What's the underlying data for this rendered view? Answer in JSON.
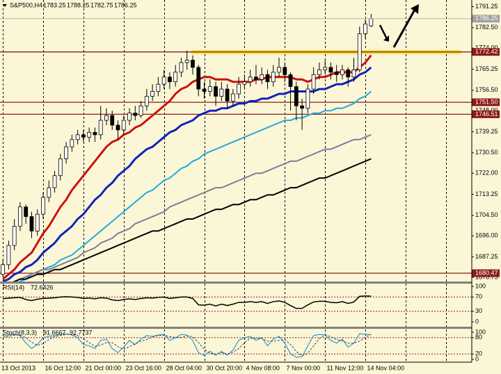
{
  "chart_data": {
    "type": "candlestick",
    "symbol": "S&P500,H4",
    "categories": [
      "13 Oct 2013",
      null,
      null,
      null,
      null,
      null,
      null,
      "16 Oct 12:00",
      null,
      null,
      null,
      null,
      null,
      null,
      "21 Oct 00:00",
      null,
      null,
      null,
      null,
      null,
      null,
      "23 Oct 16:00",
      null,
      null,
      null,
      null,
      null,
      null,
      "28 Oct 04:00",
      null,
      null,
      null,
      null,
      null,
      null,
      "30 Oct 20:00",
      null,
      null,
      null,
      null,
      null,
      null,
      "4 Nov 08:00",
      null,
      null,
      null,
      null,
      null,
      null,
      "7 Nov 00:00",
      null,
      null,
      null,
      null,
      null,
      null,
      "11 Nov 12:00",
      null,
      null,
      null,
      null,
      null,
      null,
      "14 Nov 04:00",
      null
    ],
    "candles": [
      [
        1680,
        1686,
        1679,
        1684
      ],
      [
        1684,
        1694,
        1682,
        1692
      ],
      [
        1692,
        1703,
        1690,
        1700
      ],
      [
        1700,
        1710,
        1698,
        1708
      ],
      [
        1708,
        1709,
        1701,
        1704
      ],
      [
        1704,
        1706,
        1695,
        1698
      ],
      [
        1698,
        1707,
        1696,
        1705
      ],
      [
        1705,
        1714,
        1703,
        1712
      ],
      [
        1712,
        1719,
        1710,
        1716
      ],
      [
        1716,
        1723,
        1714,
        1721
      ],
      [
        1721,
        1730,
        1719,
        1728
      ],
      [
        1728,
        1735,
        1726,
        1733
      ],
      [
        1733,
        1738,
        1731,
        1736
      ],
      [
        1736,
        1740,
        1734,
        1738
      ],
      [
        1738,
        1740,
        1735,
        1737
      ],
      [
        1737,
        1741,
        1735,
        1739
      ],
      [
        1739,
        1741,
        1735,
        1738
      ],
      [
        1738,
        1750,
        1736,
        1744
      ],
      [
        1744,
        1749,
        1742,
        1746
      ],
      [
        1746,
        1748,
        1740,
        1742
      ],
      [
        1742,
        1744,
        1736,
        1740
      ],
      [
        1740,
        1746,
        1738,
        1744
      ],
      [
        1744,
        1749,
        1742,
        1747
      ],
      [
        1747,
        1750,
        1744,
        1746
      ],
      [
        1746,
        1752,
        1745,
        1750
      ],
      [
        1750,
        1757,
        1748,
        1754
      ],
      [
        1754,
        1759,
        1752,
        1756
      ],
      [
        1756,
        1762,
        1754,
        1759
      ],
      [
        1759,
        1765,
        1757,
        1762
      ],
      [
        1762,
        1764,
        1757,
        1760
      ],
      [
        1760,
        1767,
        1758,
        1764
      ],
      [
        1764,
        1770,
        1762,
        1768
      ],
      [
        1768,
        1773,
        1765,
        1769
      ],
      [
        1769,
        1771,
        1763,
        1766
      ],
      [
        1766,
        1767,
        1754,
        1757
      ],
      [
        1757,
        1760,
        1753,
        1756
      ],
      [
        1756,
        1761,
        1754,
        1758
      ],
      [
        1758,
        1760,
        1750,
        1754
      ],
      [
        1754,
        1760,
        1752,
        1757
      ],
      [
        1757,
        1759,
        1749,
        1752
      ],
      [
        1752,
        1757,
        1750,
        1755
      ],
      [
        1755,
        1762,
        1753,
        1759
      ],
      [
        1759,
        1763,
        1757,
        1760
      ],
      [
        1760,
        1765,
        1758,
        1762
      ],
      [
        1762,
        1767,
        1759,
        1761
      ],
      [
        1761,
        1766,
        1759,
        1763
      ],
      [
        1763,
        1765,
        1757,
        1760
      ],
      [
        1760,
        1767,
        1758,
        1764
      ],
      [
        1764,
        1770,
        1762,
        1766
      ],
      [
        1766,
        1768,
        1760,
        1763
      ],
      [
        1763,
        1764,
        1748,
        1758
      ],
      [
        1758,
        1760,
        1744,
        1750
      ],
      [
        1750,
        1753,
        1740,
        1749
      ],
      [
        1749,
        1759,
        1747,
        1757
      ],
      [
        1757,
        1766,
        1755,
        1763
      ],
      [
        1763,
        1768,
        1761,
        1765
      ],
      [
        1765,
        1769,
        1763,
        1766
      ],
      [
        1766,
        1768,
        1761,
        1764
      ],
      [
        1764,
        1767,
        1760,
        1763
      ],
      [
        1763,
        1767,
        1761,
        1765
      ],
      [
        1765,
        1766,
        1758,
        1762
      ],
      [
        1762,
        1770,
        1760,
        1765
      ],
      [
        1765,
        1783,
        1764,
        1780
      ],
      [
        1780,
        1786,
        1778,
        1784
      ],
      [
        1783.25,
        1788.25,
        1782.75,
        1786.25
      ]
    ],
    "bull_color": "#ffffff",
    "bear_color": "#000000",
    "series": [
      {
        "color": "#cc1111",
        "values": [
          1678,
          1680,
          1682,
          1685,
          1687,
          1689,
          1693,
          1697,
          1700,
          1704,
          1708,
          1711,
          1715,
          1718,
          1721,
          1724,
          1727,
          1730,
          1733,
          1735,
          1736,
          1738,
          1739,
          1741,
          1742,
          1744,
          1746,
          1748,
          1750,
          1752,
          1755,
          1757,
          1758,
          1760,
          1761,
          1762,
          1762,
          1761,
          1761,
          1761,
          1760,
          1760,
          1760,
          1760,
          1761,
          1761,
          1762,
          1762,
          1762,
          1762,
          1762,
          1761,
          1761,
          1760,
          1761,
          1762,
          1762,
          1763,
          1764,
          1764,
          1764,
          1764,
          1766,
          1768,
          1771
        ]
      },
      {
        "color": "#1122bb",
        "values": [
          1677,
          1678,
          1680,
          1681,
          1683,
          1684,
          1686,
          1689,
          1691,
          1693,
          1696,
          1698,
          1700,
          1703,
          1705,
          1708,
          1711,
          1713,
          1716,
          1718,
          1721,
          1723,
          1725,
          1728,
          1730,
          1732,
          1733,
          1735,
          1737,
          1739,
          1740,
          1742,
          1743,
          1744,
          1746,
          1747,
          1748,
          1748,
          1749,
          1749,
          1750,
          1751,
          1751,
          1752,
          1752,
          1753,
          1753,
          1754,
          1755,
          1755,
          1756,
          1756,
          1756,
          1756,
          1756,
          1757,
          1757,
          1758,
          1759,
          1759,
          1760,
          1761,
          1763,
          1764,
          1766
        ]
      },
      {
        "color": "#22aadd",
        "values": [
          1673,
          1674,
          1676,
          1677,
          1678,
          1680,
          1681,
          1682,
          1683,
          1684,
          1686,
          1687,
          1688,
          1690,
          1692,
          1694,
          1696,
          1698,
          1700,
          1702,
          1704,
          1706,
          1708,
          1710,
          1712,
          1714,
          1715,
          1717,
          1719,
          1720,
          1722,
          1724,
          1725,
          1727,
          1728,
          1730,
          1731,
          1732,
          1733,
          1734,
          1735,
          1736,
          1737,
          1738,
          1739,
          1740,
          1741,
          1742,
          1743,
          1744,
          1744,
          1745,
          1745,
          1746,
          1747,
          1747,
          1748,
          1748,
          1749,
          1749,
          1750,
          1751,
          1753,
          1754,
          1756
        ]
      },
      {
        "color": "#7a7f99",
        "values": [
          1675,
          1676,
          1677,
          1678,
          1679,
          1680,
          1681,
          1682,
          1682,
          1683,
          1684,
          1685,
          1686,
          1687,
          1689,
          1690,
          1691,
          1693,
          1694,
          1695,
          1697,
          1698,
          1699,
          1701,
          1702,
          1703,
          1704,
          1705,
          1706,
          1708,
          1709,
          1710,
          1711,
          1712,
          1713,
          1714,
          1715,
          1716,
          1716,
          1717,
          1718,
          1719,
          1720,
          1721,
          1722,
          1722,
          1723,
          1724,
          1725,
          1726,
          1727,
          1727,
          1728,
          1729,
          1730,
          1731,
          1732,
          1732,
          1733,
          1734,
          1735,
          1736,
          1736,
          1737,
          1738
        ]
      },
      {
        "color": "#000000",
        "values": [
          1676,
          1676,
          1677,
          1678,
          1678,
          1679,
          1680,
          1680,
          1681,
          1682,
          1682,
          1683,
          1684,
          1685,
          1686,
          1687,
          1688,
          1689,
          1690,
          1691,
          1692,
          1693,
          1694,
          1695,
          1696,
          1697,
          1698,
          1698,
          1699,
          1700,
          1701,
          1702,
          1703,
          1703,
          1704,
          1705,
          1706,
          1707,
          1707,
          1708,
          1709,
          1709,
          1710,
          1711,
          1711,
          1712,
          1713,
          1713,
          1714,
          1715,
          1716,
          1716,
          1717,
          1718,
          1719,
          1720,
          1720,
          1721,
          1722,
          1723,
          1724,
          1725,
          1726,
          1727,
          1728
        ]
      }
    ],
    "ylim": [
      1677,
      1794
    ],
    "yticks": [
      1791.25,
      {
        "value": 1782.5,
        "label": "1782.50"
      },
      {
        "value": 1774,
        "label": "1774.00"
      },
      1765.25,
      {
        "value": 1756.5,
        "label": "1756.50"
      },
      {
        "value": 1748,
        "label": "1748.00"
      },
      1739.25,
      {
        "value": 1730.5,
        "label": "1730.50"
      },
      {
        "value": 1722,
        "label": "1722.00"
      },
      1713.25,
      {
        "value": 1704.5,
        "label": "1704.50"
      },
      {
        "value": 1696,
        "label": "1696.00"
      },
      1687.25,
      1678.75
    ],
    "levels": [
      1772.42,
      {
        "value": 1751.5,
        "label": "1751.50"
      },
      1746.51,
      1680.47
    ],
    "level_color": "#8b1a1a",
    "highlight_color": "#f2e23a",
    "rsi": {
      "name": "RSI(14)",
      "color": "#000000",
      "values": [
        65,
        67,
        68,
        69,
        63,
        60,
        64,
        66,
        67,
        68,
        70,
        71,
        70,
        69,
        66,
        67,
        65,
        68,
        67,
        62,
        60,
        63,
        65,
        63,
        66,
        68,
        67,
        69,
        70,
        66,
        68,
        70,
        70,
        66,
        48,
        47,
        50,
        45,
        50,
        46,
        50,
        55,
        55,
        57,
        55,
        57,
        52,
        57,
        59,
        55,
        46,
        38,
        38,
        48,
        56,
        58,
        58,
        55,
        54,
        57,
        52,
        56,
        72,
        73,
        72.6426
      ],
      "ylim": [
        0,
        100
      ],
      "yticks": [
        100,
        70,
        30,
        0
      ],
      "levels": [
        70,
        30
      ]
    },
    "stoch": {
      "name": "Stoch(8,3,3)",
      "color": "#3399cc",
      "signal_color": "#334466",
      "values": [
        85,
        90,
        92,
        88,
        60,
        40,
        55,
        80,
        85,
        88,
        92,
        95,
        90,
        80,
        55,
        50,
        40,
        70,
        75,
        40,
        25,
        45,
        70,
        55,
        75,
        88,
        85,
        90,
        92,
        70,
        80,
        92,
        90,
        70,
        25,
        15,
        30,
        15,
        30,
        15,
        35,
        70,
        80,
        85,
        70,
        80,
        50,
        75,
        85,
        60,
        20,
        8,
        10,
        50,
        88,
        92,
        90,
        70,
        60,
        75,
        45,
        60,
        95,
        92,
        91.6667
      ],
      "signal": [
        80,
        85,
        89,
        90,
        80,
        63,
        52,
        58,
        73,
        84,
        88,
        92,
        92,
        88,
        75,
        62,
        48,
        53,
        62,
        62,
        47,
        37,
        47,
        57,
        67,
        73,
        83,
        88,
        89,
        84,
        81,
        81,
        87,
        84,
        62,
        37,
        23,
        20,
        25,
        20,
        27,
        40,
        62,
        78,
        78,
        78,
        67,
        68,
        70,
        73,
        55,
        29,
        13,
        23,
        49,
        77,
        90,
        84,
        73,
        68,
        60,
        60,
        67,
        82,
        92.7737
      ],
      "ylim": [
        0,
        100
      ],
      "yticks": [
        100,
        80,
        20,
        0
      ],
      "levels": [
        80,
        20
      ]
    }
  }
}
